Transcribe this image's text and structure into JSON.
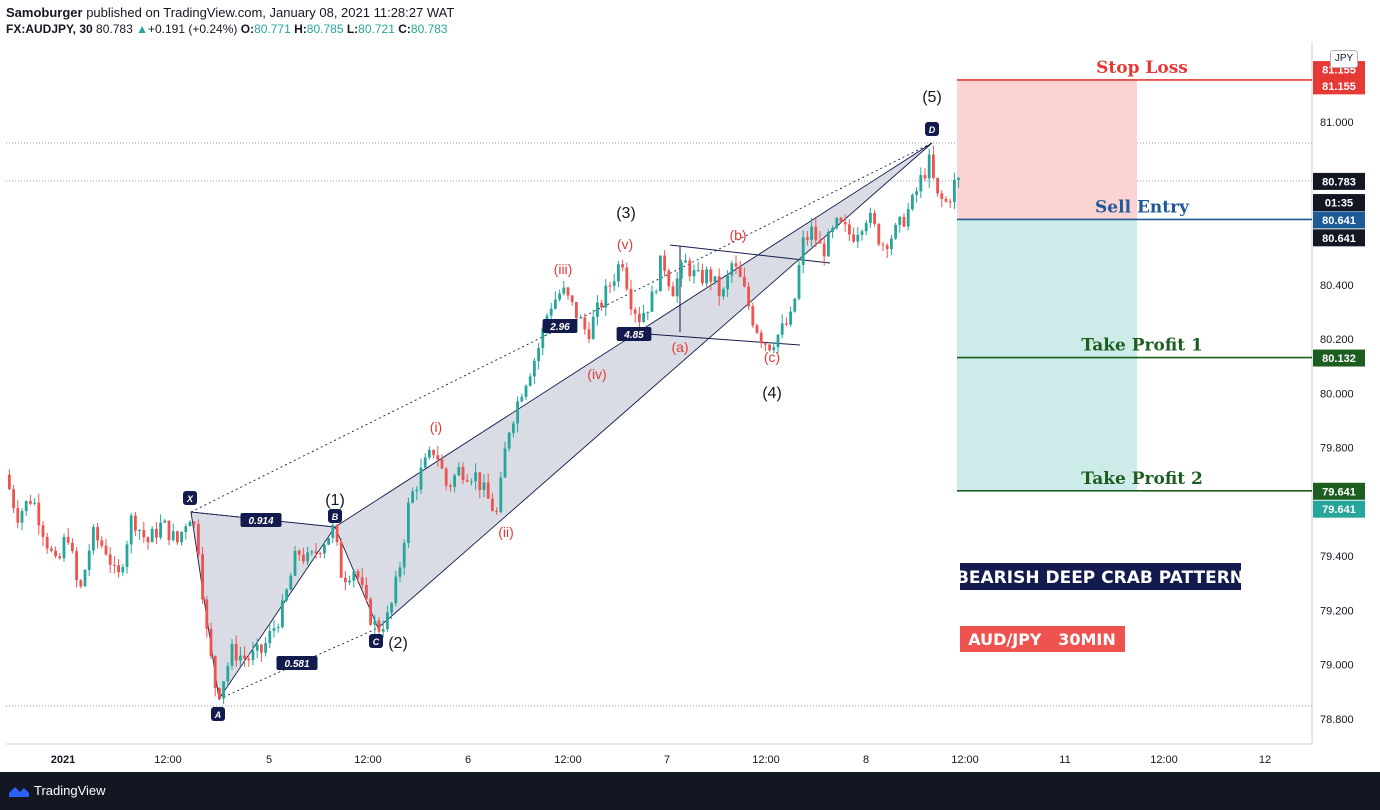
{
  "header": {
    "author": "Samoburger",
    "published": " published on TradingView.com, January 08, 2021 11:28:27 WAT",
    "symbol": "FX:AUDJPY, 30",
    "last": "80.783",
    "change_arrow": "▲",
    "change": "+0.191 (+0.24%)",
    "o_label": "O:",
    "o": "80.771",
    "h_label": "H:",
    "h": "80.785",
    "l_label": "L:",
    "l": "80.721",
    "c_label": "C:",
    "c": "80.783"
  },
  "currency_button": "JPY",
  "footer": {
    "brand": "TradingView",
    "logo_icon": "tradingview-logo-icon"
  },
  "colors": {
    "up": "#26a69a",
    "down": "#ef5350",
    "navy": "#131a4d",
    "wave_red": "#e53935",
    "stop": "#e53935",
    "entry": "#1e5a96",
    "tp": "#1b5e20",
    "stop_zone": "#fbd3d3",
    "profit_zone": "#cdebe8",
    "pattern_fill": "#d6d8e2"
  },
  "chart_data": {
    "type": "candlestick",
    "title": "",
    "xlabel": "",
    "ylabel": "",
    "ylim": [
      78.72,
      81.27
    ],
    "y_ticks": [
      "81.000",
      "80.400",
      "80.200",
      "80.000",
      "79.800",
      "79.400",
      "79.200",
      "79.000",
      "78.800"
    ],
    "x_ticks": [
      "2021",
      "12:00",
      "5",
      "12:00",
      "6",
      "12:00",
      "7",
      "12:00",
      "8",
      "12:00",
      "11",
      "12:00",
      "12"
    ],
    "grid": false,
    "price_path": [
      [
        0,
        79.6
      ],
      [
        8,
        79.7
      ],
      [
        20,
        79.55
      ],
      [
        35,
        79.62
      ],
      [
        50,
        79.45
      ],
      [
        60,
        79.35
      ],
      [
        70,
        79.5
      ],
      [
        82,
        79.25
      ],
      [
        95,
        79.48
      ],
      [
        110,
        79.42
      ],
      [
        120,
        79.3
      ],
      [
        135,
        79.55
      ],
      [
        150,
        79.45
      ],
      [
        165,
        79.52
      ],
      [
        180,
        79.45
      ],
      [
        192,
        79.56
      ],
      [
        200,
        79.48
      ],
      [
        210,
        79.1
      ],
      [
        220,
        78.88
      ],
      [
        235,
        79.05
      ],
      [
        250,
        79.02
      ],
      [
        265,
        79.05
      ],
      [
        285,
        79.2
      ],
      [
        300,
        79.42
      ],
      [
        312,
        79.38
      ],
      [
        325,
        79.45
      ],
      [
        336,
        79.5
      ],
      [
        345,
        79.32
      ],
      [
        358,
        79.36
      ],
      [
        370,
        79.2
      ],
      [
        380,
        79.13
      ],
      [
        392,
        79.18
      ],
      [
        402,
        79.35
      ],
      [
        412,
        79.6
      ],
      [
        425,
        79.72
      ],
      [
        438,
        79.8
      ],
      [
        450,
        79.65
      ],
      [
        462,
        79.72
      ],
      [
        478,
        79.7
      ],
      [
        492,
        79.6
      ],
      [
        500,
        79.55
      ],
      [
        510,
        79.85
      ],
      [
        525,
        80.02
      ],
      [
        540,
        80.15
      ],
      [
        552,
        80.32
      ],
      [
        565,
        80.38
      ],
      [
        578,
        80.3
      ],
      [
        590,
        80.22
      ],
      [
        600,
        80.3
      ],
      [
        615,
        80.42
      ],
      [
        625,
        80.5
      ],
      [
        633,
        80.35
      ],
      [
        642,
        80.28
      ],
      [
        655,
        80.35
      ],
      [
        665,
        80.5
      ],
      [
        675,
        80.38
      ],
      [
        688,
        80.48
      ],
      [
        700,
        80.42
      ],
      [
        712,
        80.44
      ],
      [
        725,
        80.35
      ],
      [
        735,
        80.48
      ],
      [
        745,
        80.4
      ],
      [
        755,
        80.28
      ],
      [
        765,
        80.2
      ],
      [
        772,
        80.18
      ],
      [
        782,
        80.22
      ],
      [
        795,
        80.28
      ],
      [
        805,
        80.55
      ],
      [
        815,
        80.6
      ],
      [
        825,
        80.52
      ],
      [
        840,
        80.62
      ],
      [
        855,
        80.58
      ],
      [
        870,
        80.66
      ],
      [
        885,
        80.55
      ],
      [
        900,
        80.6
      ],
      [
        915,
        80.7
      ],
      [
        925,
        80.8
      ],
      [
        932,
        80.85
      ],
      [
        940,
        80.72
      ],
      [
        950,
        80.7
      ],
      [
        958,
        80.78
      ]
    ],
    "pattern": {
      "name": "BEARISH DEEP CRAB PATTERN",
      "points": [
        {
          "label": "X",
          "x": "Jan 4 15:30",
          "y": 79.56
        },
        {
          "label": "A",
          "x": "Jan 4 19:30",
          "y": 78.86
        },
        {
          "label": "B",
          "x": "Jan 5 09:00",
          "y": 79.5
        },
        {
          "label": "C",
          "x": "Jan 5 13:30",
          "y": 79.13
        },
        {
          "label": "D",
          "x": "Jan 8 10:00",
          "y": 80.92
        }
      ],
      "ratios": [
        "0.914",
        "0.581",
        "2.96",
        "4.85"
      ]
    },
    "elliott_waves": [
      {
        "label": "(1)",
        "x": "Jan 5 09:00",
        "y": 79.5
      },
      {
        "label": "(2)",
        "x": "Jan 5 13:30",
        "y": 79.13
      },
      {
        "label": "(3)",
        "x": "Jan 7 05:00",
        "y": 80.54
      },
      {
        "label": "(4)",
        "x": "Jan 7 12:00",
        "y": 80.17
      },
      {
        "label": "(5)",
        "x": "Jan 8 10:00",
        "y": 80.92
      }
    ],
    "subwaves": [
      "(i)",
      "(ii)",
      "(iii)",
      "(iv)",
      "(v)",
      "(a)",
      "(b)",
      "(c)"
    ],
    "levels": [
      {
        "label": "Stop Loss",
        "y": 81.155
      },
      {
        "label": "Sell Entry",
        "y": 80.641
      },
      {
        "label": "Take Profit 1",
        "y": 80.132
      },
      {
        "label": "Take Profit 2",
        "y": 79.641
      }
    ],
    "axis_labels": [
      {
        "text": "81.155",
        "y": 81.195,
        "color": "#e53935"
      },
      {
        "text": "81.155",
        "y": 81.135,
        "color": "#e53935"
      },
      {
        "text": "80.783",
        "y": 80.783,
        "color": "#131722"
      },
      {
        "text": "01:35",
        "y": 80.705,
        "color": "#131722"
      },
      {
        "text": "80.641",
        "y": 80.641,
        "color": "#1e5a96"
      },
      {
        "text": "80.641",
        "y": 80.575,
        "color": "#131722"
      },
      {
        "text": "80.132",
        "y": 80.132,
        "color": "#1b5e20"
      },
      {
        "text": "79.641",
        "y": 79.641,
        "color": "#1b5e20"
      },
      {
        "text": "79.641",
        "y": 79.575,
        "color": "#26a69a"
      }
    ],
    "top_clipped_tick": "8",
    "info_label": "AUD/JPY   30MIN"
  }
}
